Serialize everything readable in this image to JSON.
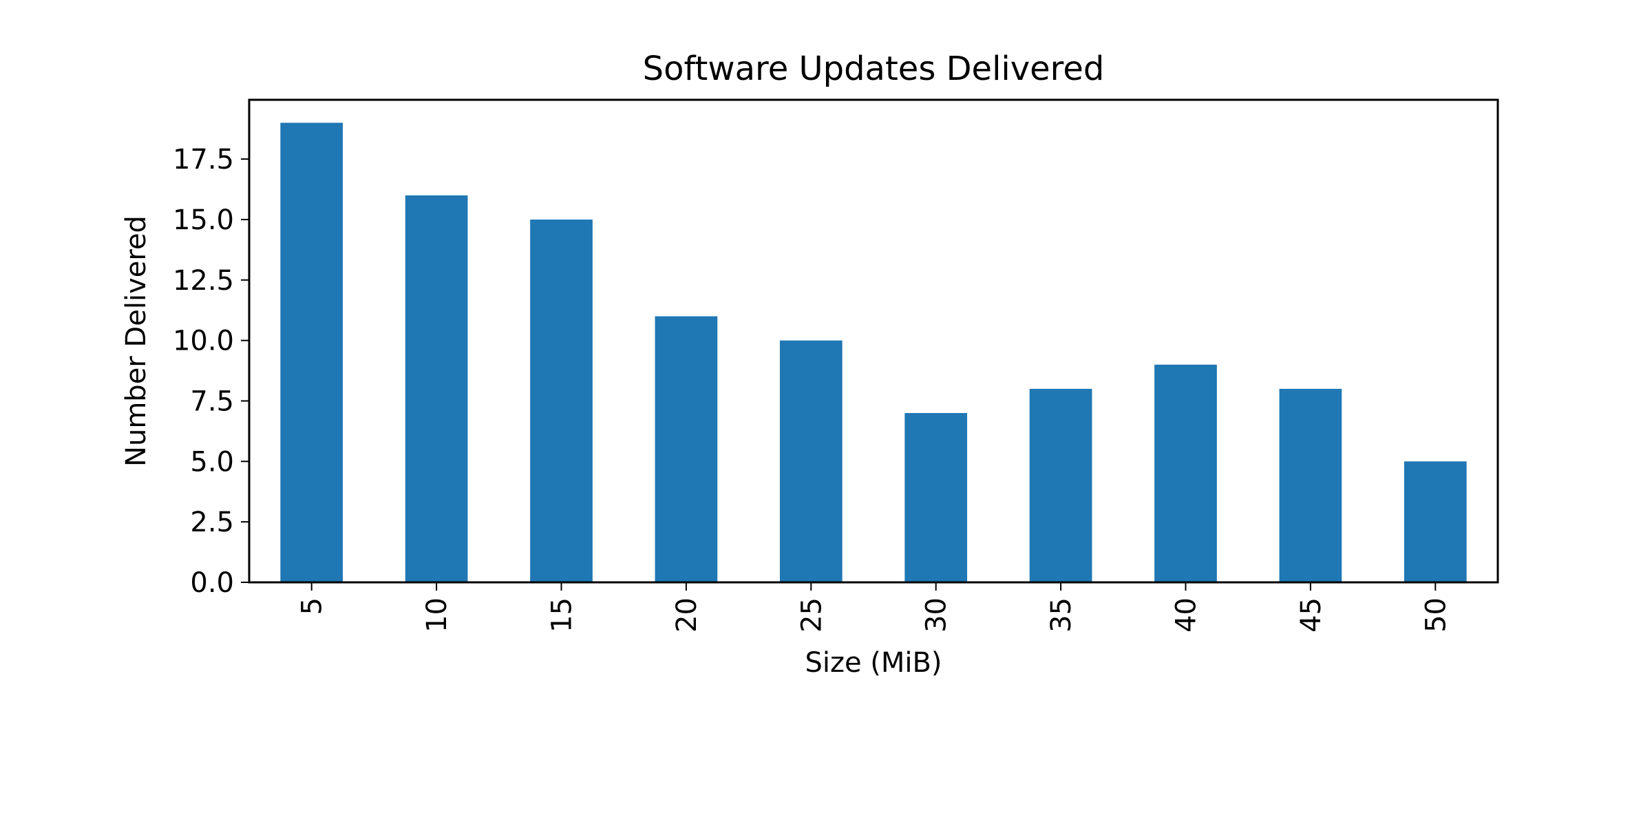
{
  "chart_data": {
    "type": "bar",
    "title": "Software Updates Delivered",
    "xlabel": "Size (MiB)",
    "ylabel": "Number Delivered",
    "categories": [
      "5",
      "10",
      "15",
      "20",
      "25",
      "30",
      "35",
      "40",
      "45",
      "50"
    ],
    "values": [
      19,
      16,
      15,
      11,
      10,
      7,
      8,
      9,
      8,
      5
    ],
    "ylim": [
      0,
      19.95
    ],
    "yticks": [
      "0.0",
      "2.5",
      "5.0",
      "7.5",
      "10.0",
      "12.5",
      "15.0",
      "17.5"
    ],
    "xtick_rotation": "vertical",
    "grid": false,
    "legend": "none",
    "bar_color": "#1f77b4"
  }
}
